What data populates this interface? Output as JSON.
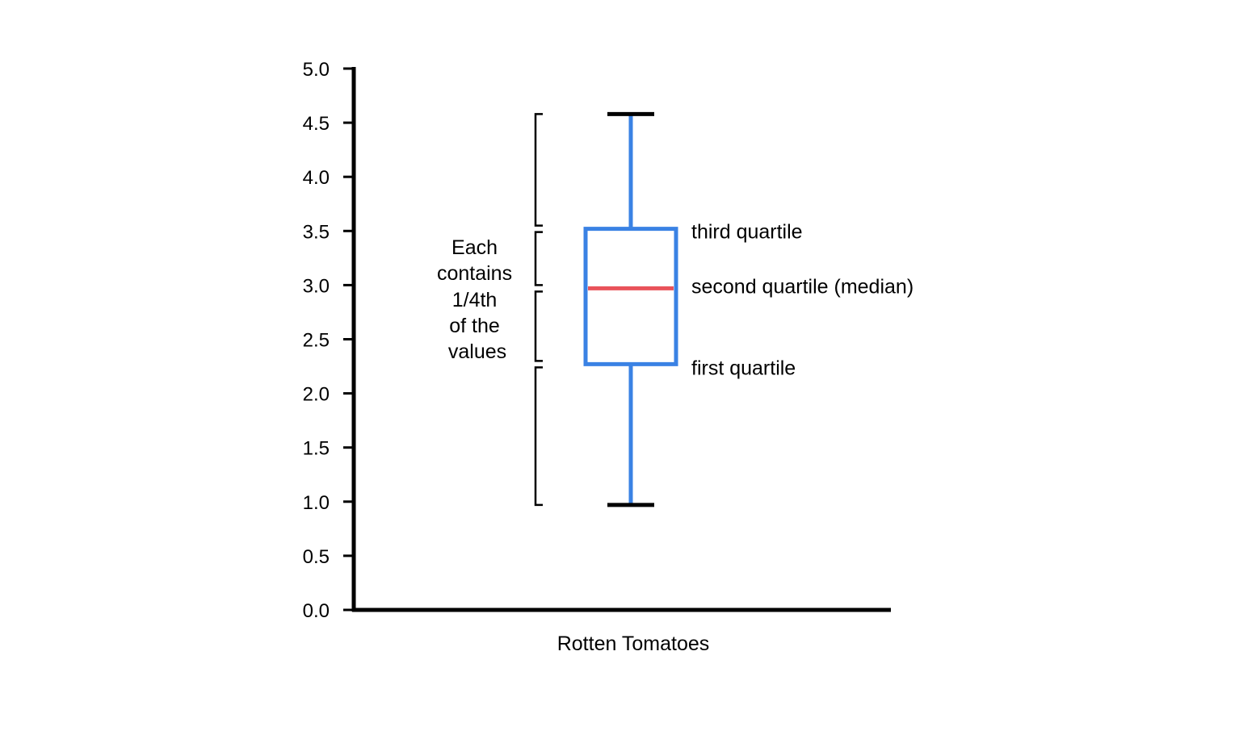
{
  "chart_data": {
    "type": "box",
    "xlabel": "Rotten Tomatoes",
    "ylim": [
      0,
      5
    ],
    "yticks": [
      "0.0",
      "0.5",
      "1.0",
      "1.5",
      "2.0",
      "2.5",
      "3.0",
      "3.5",
      "4.0",
      "4.5",
      "5.0"
    ],
    "grid": false,
    "box": {
      "whisker_low": 0.97,
      "q1": 2.27,
      "median": 2.97,
      "q3": 3.52,
      "whisker_high": 4.58
    },
    "annotations": {
      "q3_label": "third quartile",
      "median_label": "second quartile (median)",
      "q1_label": "first quartile"
    },
    "bracket_note": [
      "Each",
      "contains",
      "1/4th",
      "of the",
      "values"
    ],
    "colors": {
      "box": "#3a82e4",
      "median": "#e9535a",
      "caps": "#000000",
      "axis": "#000000"
    }
  }
}
